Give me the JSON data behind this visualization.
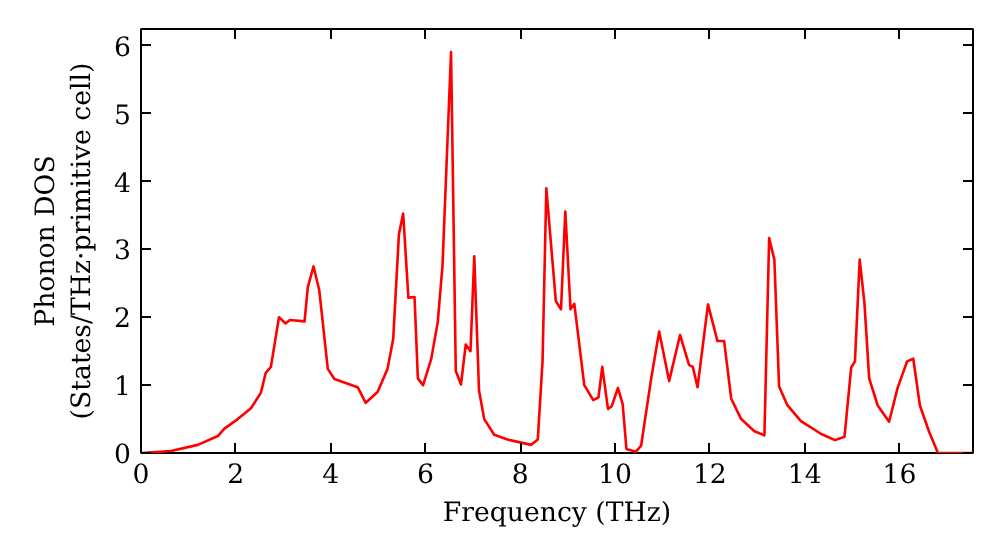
{
  "chart_data": {
    "type": "line",
    "xlabel": "Frequency (THz)",
    "ylabel": "Phonon DOS\n(States/THz·primitive cell)",
    "xlim": [
      0,
      17.55
    ],
    "ylim": [
      0,
      6.25
    ],
    "xticks": [
      0,
      2,
      4,
      6,
      8,
      10,
      12,
      14,
      16
    ],
    "yticks": [
      0,
      1,
      2,
      3,
      4,
      5,
      6
    ],
    "grid": false,
    "marker": "none",
    "line_style": "solid",
    "series": [
      {
        "color": "#ff0000",
        "x": [
          0,
          0.63,
          1.2,
          1.62,
          1.76,
          2.04,
          2.32,
          2.53,
          2.63,
          2.74,
          2.91,
          3.05,
          3.14,
          3.45,
          3.52,
          3.64,
          3.76,
          3.94,
          4.08,
          4.57,
          4.74,
          4.99,
          5.2,
          5.32,
          5.44,
          5.53,
          5.64,
          5.77,
          5.84,
          5.95,
          6.12,
          6.26,
          6.36,
          6.54,
          6.64,
          6.75,
          6.85,
          6.95,
          7.03,
          7.13,
          7.24,
          7.45,
          7.73,
          8.23,
          8.37,
          8.47,
          8.55,
          8.75,
          8.86,
          8.95,
          9.06,
          9.14,
          9.35,
          9.54,
          9.65,
          9.73,
          9.85,
          9.93,
          10.06,
          10.16,
          10.24,
          10.44,
          10.55,
          10.76,
          10.93,
          11.14,
          11.37,
          11.56,
          11.64,
          11.74,
          11.96,
          12.16,
          12.3,
          12.45,
          12.66,
          12.94,
          13.15,
          13.25,
          13.36,
          13.46,
          13.63,
          13.92,
          14.35,
          14.64,
          14.84,
          14.98,
          15.06,
          15.16,
          15.26,
          15.36,
          15.54,
          15.78,
          15.96,
          16.16,
          16.29,
          16.43,
          16.62,
          16.81,
          17.55
        ],
        "values": [
          0,
          0.03,
          0.12,
          0.25,
          0.36,
          0.5,
          0.66,
          0.89,
          1.18,
          1.27,
          2.0,
          1.91,
          1.96,
          1.94,
          2.45,
          2.75,
          2.4,
          1.24,
          1.09,
          0.97,
          0.74,
          0.9,
          1.24,
          1.68,
          3.22,
          3.53,
          2.29,
          2.3,
          1.1,
          1.0,
          1.38,
          1.93,
          2.77,
          5.91,
          1.21,
          1.01,
          1.6,
          1.5,
          2.9,
          0.92,
          0.5,
          0.27,
          0.2,
          0.12,
          0.2,
          1.35,
          3.9,
          2.24,
          2.12,
          3.56,
          2.12,
          2.2,
          1.0,
          0.78,
          0.82,
          1.27,
          0.65,
          0.69,
          0.96,
          0.72,
          0.06,
          0.02,
          0.11,
          1.09,
          1.79,
          1.06,
          1.74,
          1.3,
          1.27,
          0.97,
          2.19,
          1.65,
          1.65,
          0.8,
          0.5,
          0.32,
          0.26,
          3.17,
          2.85,
          0.98,
          0.71,
          0.47,
          0.28,
          0.19,
          0.24,
          1.26,
          1.35,
          2.85,
          2.21,
          1.1,
          0.7,
          0.46,
          0.96,
          1.35,
          1.39,
          0.7,
          0.32,
          0,
          0
        ]
      }
    ]
  }
}
